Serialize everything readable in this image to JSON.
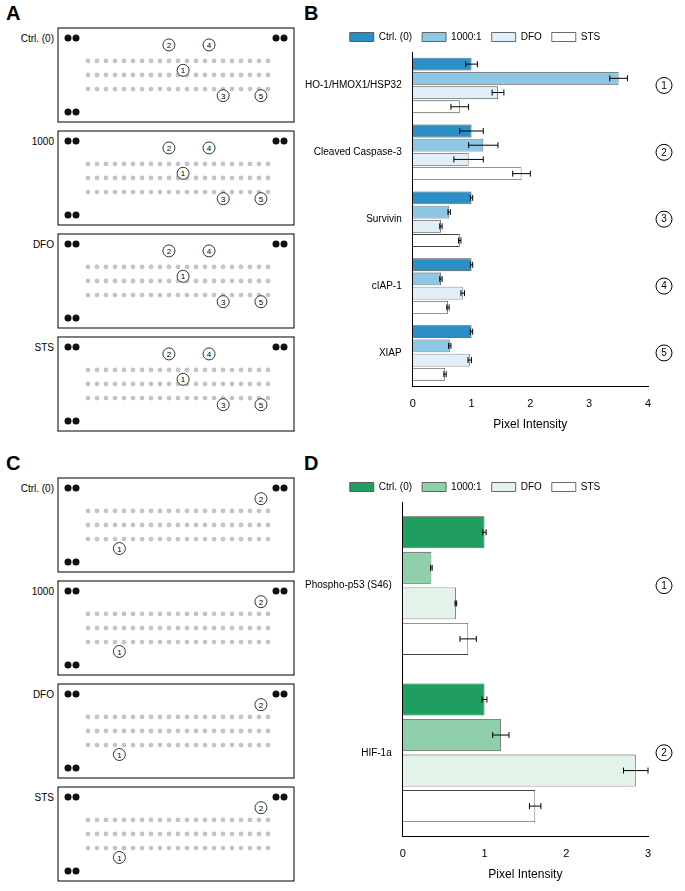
{
  "panels": [
    {
      "letter": "A",
      "blots": [
        {
          "label": "Ctrl. (0)",
          "markers": [
            "1",
            "2",
            "3",
            "4",
            "5"
          ]
        },
        {
          "label": "1000",
          "markers": [
            "1",
            "2",
            "3",
            "4",
            "5"
          ]
        },
        {
          "label": "DFO",
          "markers": [
            "1",
            "2",
            "3",
            "4",
            "5"
          ]
        },
        {
          "label": "STS",
          "markers": [
            "1",
            "2",
            "3",
            "4",
            "5"
          ]
        }
      ]
    },
    {
      "letter": "C",
      "blots": [
        {
          "label": "Ctrl. (0)",
          "markers": [
            "1",
            "2"
          ]
        },
        {
          "label": "1000",
          "markers": [
            "1",
            "2"
          ]
        },
        {
          "label": "DFO",
          "markers": [
            "1",
            "2"
          ]
        },
        {
          "label": "STS",
          "markers": [
            "1",
            "2"
          ]
        }
      ]
    }
  ],
  "chart_data": [
    {
      "panel": "B",
      "type": "bar",
      "orientation": "horizontal",
      "legend": "top",
      "grid": false,
      "x_label": "Pixel Intensity",
      "categories": [
        "HO-1/HMOX1/HSP32",
        "Cleaved Caspase-3",
        "Survivin",
        "cIAP-1",
        "XIAP"
      ],
      "group_markers": [
        "1",
        "2",
        "3",
        "4",
        "5"
      ],
      "xlim": [
        0,
        4
      ],
      "xticks": [
        0,
        1,
        2,
        3,
        4
      ],
      "series": [
        {
          "name": "Ctrl. (0)",
          "color": "#2b8fc6",
          "values": [
            1.0,
            1.0,
            1.0,
            1.0,
            1.0
          ],
          "errors": [
            0.1,
            0.2,
            0.02,
            0.02,
            0.02
          ]
        },
        {
          "name": "1000:1",
          "color": "#8ec7e4",
          "values": [
            3.5,
            1.2,
            0.62,
            0.48,
            0.63
          ],
          "errors": [
            0.15,
            0.25,
            0.02,
            0.02,
            0.02
          ]
        },
        {
          "name": "DFO",
          "color": "#e1eff8",
          "values": [
            1.45,
            0.95,
            0.48,
            0.85,
            0.97
          ],
          "errors": [
            0.1,
            0.25,
            0.02,
            0.03,
            0.03
          ]
        },
        {
          "name": "STS",
          "color": "#ffffff",
          "values": [
            0.8,
            1.85,
            0.8,
            0.6,
            0.55
          ],
          "errors": [
            0.15,
            0.15,
            0.02,
            0.02,
            0.02
          ]
        }
      ]
    },
    {
      "panel": "D",
      "type": "bar",
      "orientation": "horizontal",
      "legend": "top",
      "grid": false,
      "x_label": "Pixel Intensity",
      "categories": [
        "Phospho-p53 (S46)",
        "HIF-1a"
      ],
      "group_markers": [
        "1",
        "2"
      ],
      "xlim": [
        0,
        3
      ],
      "xticks": [
        0,
        1,
        2,
        3
      ],
      "series": [
        {
          "name": "Ctrl. (0)",
          "color": "#1f9e60",
          "values": [
            1.0,
            1.0
          ],
          "errors": [
            0.02,
            0.03
          ]
        },
        {
          "name": "1000:1",
          "color": "#8fcfa9",
          "values": [
            0.35,
            1.2
          ],
          "errors": [
            0.01,
            0.1
          ]
        },
        {
          "name": "DFO",
          "color": "#e3f3e9",
          "values": [
            0.65,
            2.85
          ],
          "errors": [
            0.01,
            0.15
          ]
        },
        {
          "name": "STS",
          "color": "#ffffff",
          "values": [
            0.8,
            1.62
          ],
          "errors": [
            0.1,
            0.07
          ]
        }
      ]
    }
  ]
}
